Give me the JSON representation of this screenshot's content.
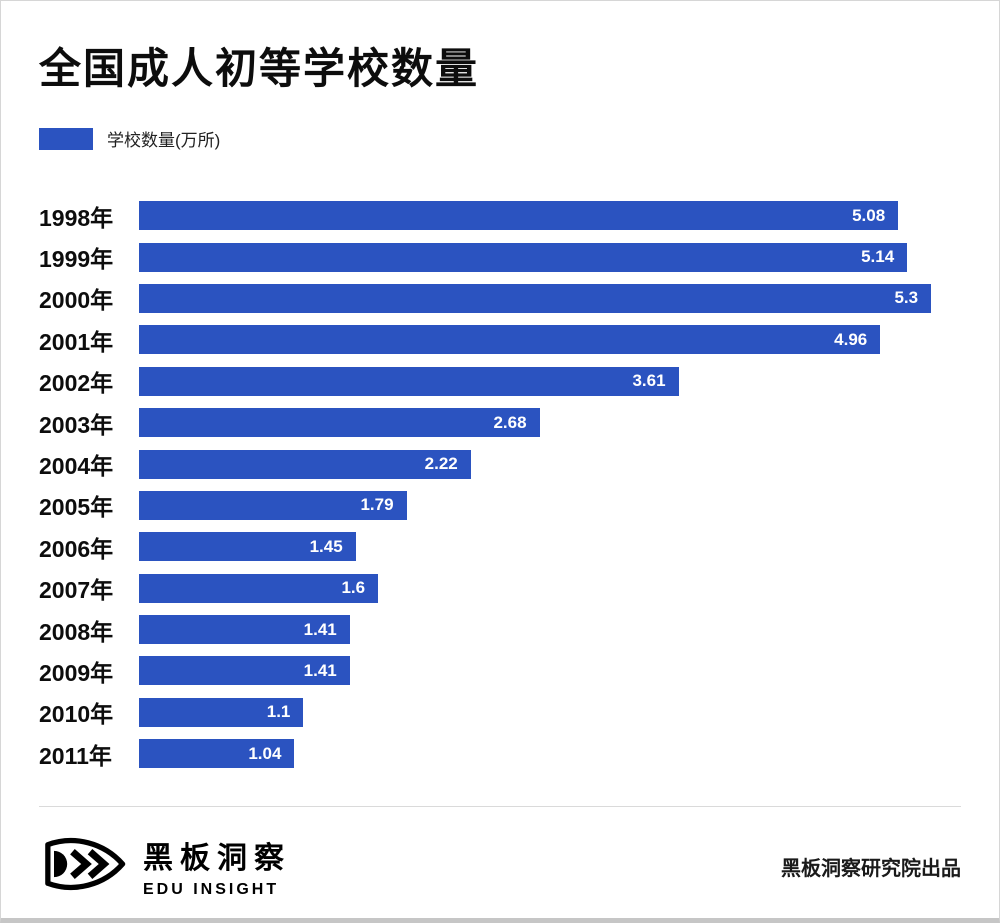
{
  "page": {
    "title": "全国成人初等学校数量"
  },
  "legend": {
    "label": "学校数量(万所)",
    "color": "#2b53c0"
  },
  "chart_data": {
    "type": "bar",
    "orientation": "horizontal",
    "title": "全国成人初等学校数量",
    "legend": [
      "学校数量(万所)"
    ],
    "categories": [
      "1998年",
      "1999年",
      "2000年",
      "2001年",
      "2002年",
      "2003年",
      "2004年",
      "2005年",
      "2006年",
      "2007年",
      "2008年",
      "2009年",
      "2010年",
      "2011年"
    ],
    "values": [
      5.08,
      5.14,
      5.3,
      4.96,
      3.61,
      2.68,
      2.22,
      1.79,
      1.45,
      1.6,
      1.41,
      1.41,
      1.1,
      1.04
    ],
    "xlabel": "",
    "ylabel": "",
    "xlim": [
      0,
      5.5
    ],
    "grid": false,
    "legend_position": "top-left",
    "bar_color": "#2b53c0",
    "value_label_color": "#ffffff"
  },
  "footer": {
    "brand_cn": "黑板洞察",
    "brand_en": "EDU INSIGHT",
    "credit": "黑板洞察研究院出品"
  }
}
